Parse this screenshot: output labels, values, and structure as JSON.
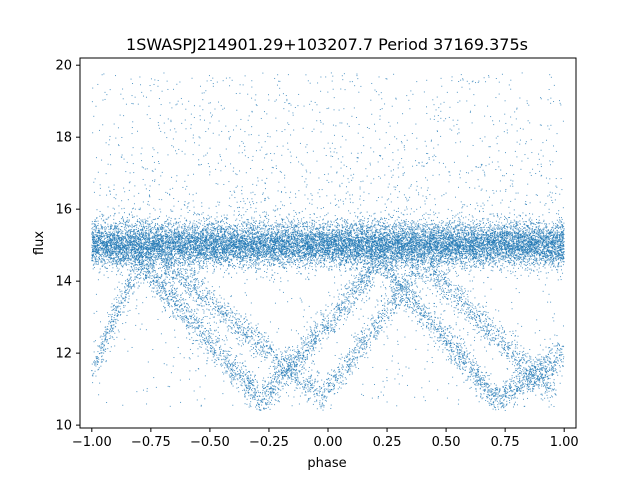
{
  "chart_data": {
    "type": "scatter",
    "title": "1SWASPJ214901.29+103207.7 Period 37169.375s",
    "xlabel": "phase",
    "ylabel": "flux",
    "xlim": [
      -1.05,
      1.05
    ],
    "ylim": [
      9.92,
      20.2
    ],
    "x_ticks": [
      -1.0,
      -0.75,
      -0.5,
      -0.25,
      0.0,
      0.25,
      0.5,
      0.75,
      1.0
    ],
    "x_tick_labels": [
      "−1.00",
      "−0.75",
      "−0.50",
      "−0.25",
      "0.00",
      "0.25",
      "0.50",
      "0.75",
      "1.00"
    ],
    "y_ticks": [
      10,
      12,
      14,
      16,
      18,
      20
    ],
    "y_tick_labels": [
      "10",
      "12",
      "14",
      "16",
      "18",
      "20"
    ],
    "grid": false,
    "point_color": "#1f77b4",
    "series": [
      {
        "structure": "dense horizontal band",
        "x_range": [
          -1.0,
          1.0
        ],
        "y_center": 15.0,
        "y_spread": 0.3,
        "sample_points": [
          [
            -1.0,
            15.0
          ],
          [
            -0.5,
            15.1
          ],
          [
            0.0,
            15.0
          ],
          [
            0.5,
            15.0
          ],
          [
            1.0,
            15.1
          ]
        ]
      },
      {
        "structure": "sparse outliers above band",
        "x_range": [
          -1.0,
          1.0
        ],
        "y_range": [
          15.5,
          19.8
        ],
        "sample_points": [
          [
            -0.85,
            17.3
          ],
          [
            -0.4,
            18.2
          ],
          [
            0.1,
            16.8
          ],
          [
            0.45,
            17.5
          ],
          [
            0.9,
            19.1
          ]
        ]
      },
      {
        "structure": "V-shaped eclipse tracks (periodic dips)",
        "minimum_flux": 10.7,
        "vertices": [
          {
            "x": -1.0,
            "y": 11.5
          },
          {
            "x": -0.8,
            "y": 14.5
          },
          {
            "x": -0.28,
            "y": 10.7
          },
          {
            "x": 0.22,
            "y": 14.5
          },
          {
            "x": 0.72,
            "y": 10.7
          },
          {
            "x": 1.0,
            "y": 12.0
          }
        ],
        "second_dip_vertices": [
          {
            "x": -0.7,
            "y": 14.5
          },
          {
            "x": -0.02,
            "y": 10.8
          },
          {
            "x": 0.4,
            "y": 14.5
          },
          {
            "x": 0.95,
            "y": 10.9
          }
        ],
        "sample_points": [
          [
            -0.95,
            12.0
          ],
          [
            -0.6,
            13.2
          ],
          [
            -0.3,
            10.8
          ],
          [
            0.0,
            11.0
          ],
          [
            0.1,
            12.5
          ],
          [
            0.55,
            13.0
          ],
          [
            0.75,
            10.8
          ],
          [
            0.95,
            11.0
          ]
        ]
      }
    ]
  }
}
